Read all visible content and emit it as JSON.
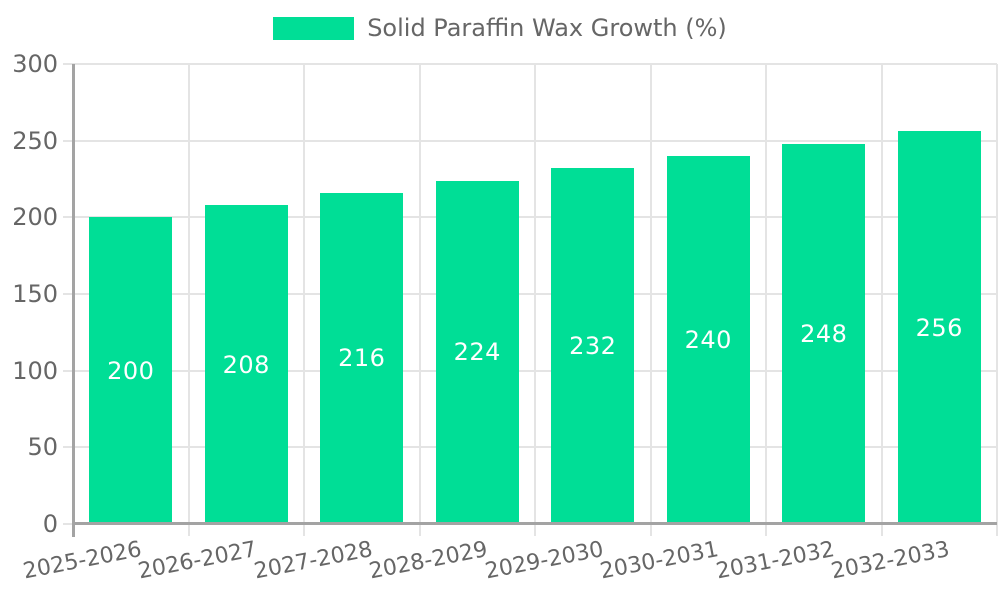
{
  "legend": {
    "label": "Solid Paraffin Wax Growth (%)"
  },
  "chart_data": {
    "type": "bar",
    "title": "",
    "xlabel": "",
    "ylabel": "",
    "series_name": "Solid Paraffin Wax Growth (%)",
    "categories": [
      "2025-2026",
      "2026-2027",
      "2027-2028",
      "2028-2029",
      "2029-2030",
      "2030-2031",
      "2031-2032",
      "2032-2033"
    ],
    "values": [
      200,
      208,
      216,
      224,
      232,
      240,
      248,
      256
    ],
    "ylim": [
      0,
      300
    ],
    "yticks": [
      0,
      50,
      100,
      150,
      200,
      250,
      300
    ],
    "grid": true,
    "legend_position": "top",
    "x_label_rotation_deg": -11,
    "value_labels_shown": true,
    "colors": {
      "bar": "#00DE96",
      "grid": "#e4e4e4",
      "axis": "#a3a3a3",
      "tick_label": "#666666",
      "value_label": "#ffffff",
      "legend_text": "#666666"
    }
  }
}
